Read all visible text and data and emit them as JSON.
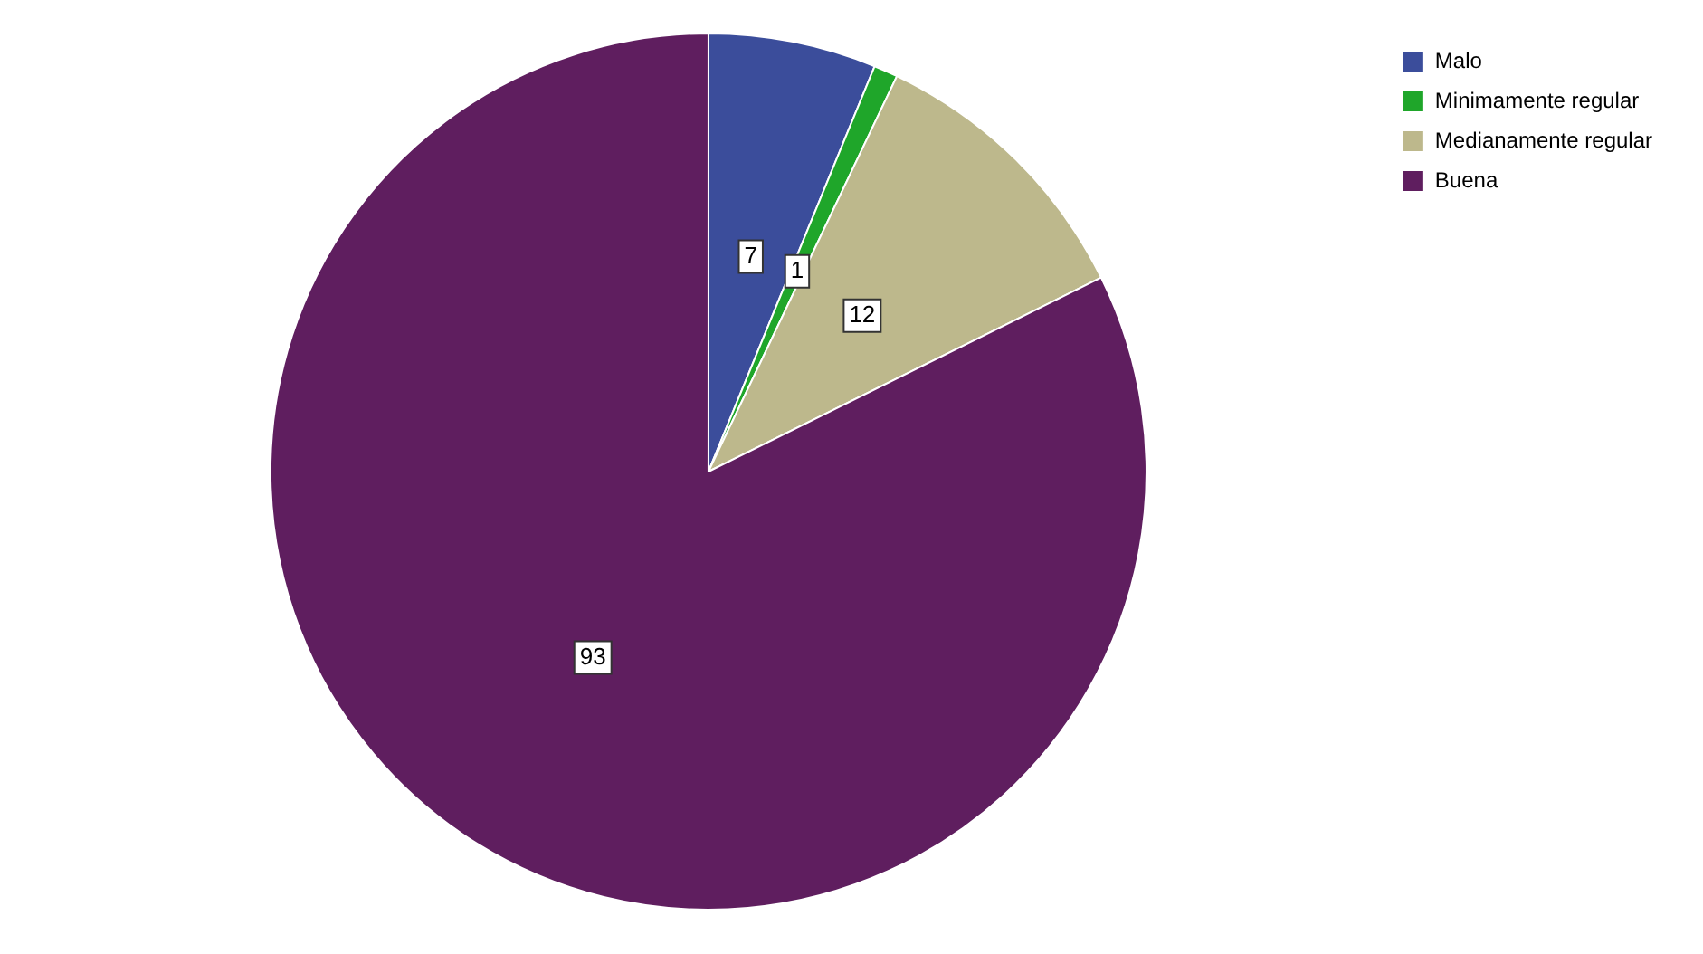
{
  "chart_data": {
    "type": "pie",
    "categories": [
      "Malo",
      "Minimamente regular",
      "Medianamente regular",
      "Buena"
    ],
    "values": [
      7,
      1,
      12,
      93
    ],
    "colors": [
      "#3b4d9b",
      "#1fa62a",
      "#bdb88c",
      "#5f1e5f"
    ],
    "data_labels": true,
    "legend": "top right"
  }
}
